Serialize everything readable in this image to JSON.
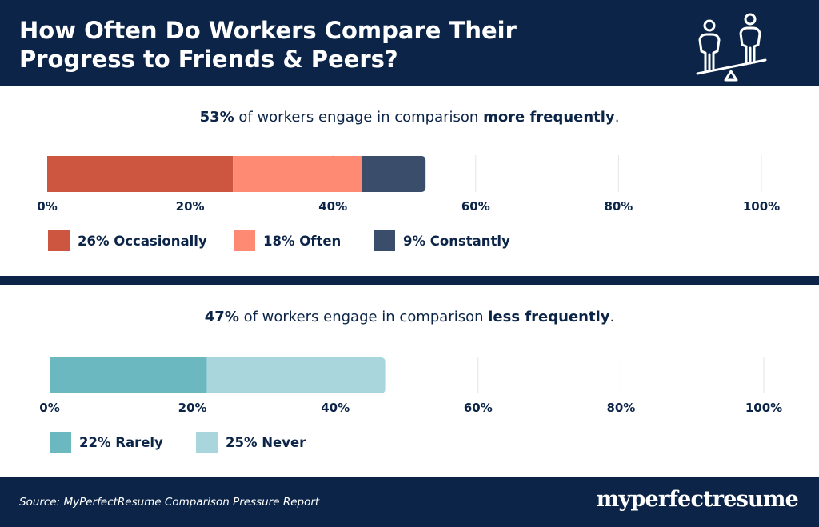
{
  "header": {
    "title": "How Often Do Workers Compare Their Progress to Friends & Peers?",
    "icon": "seesaw-people-icon"
  },
  "chart_data": [
    {
      "type": "bar",
      "stacked": true,
      "orientation": "horizontal",
      "headline": {
        "bold_pre": "53%",
        "text": " of workers engage in comparison ",
        "bold_post": "more frequently",
        "end": "."
      },
      "xlim": [
        0,
        100
      ],
      "tick_labels": [
        "0%",
        "20%",
        "40%",
        "60%",
        "80%",
        "100%"
      ],
      "grid": true,
      "legend_position": "bottom-left",
      "series": [
        {
          "name": "Occasionally",
          "value": 26,
          "label": "26% Occasionally",
          "color": "#cd5640"
        },
        {
          "name": "Often",
          "value": 18,
          "label": "18% Often",
          "color": "#ff8a74"
        },
        {
          "name": "Constantly",
          "value": 9,
          "label": "9% Constantly",
          "color": "#3a4d6b"
        }
      ]
    },
    {
      "type": "bar",
      "stacked": true,
      "orientation": "horizontal",
      "headline": {
        "bold_pre": "47%",
        "text": " of workers engage in comparison ",
        "bold_post": "less frequently",
        "end": "."
      },
      "xlim": [
        0,
        100
      ],
      "tick_labels": [
        "0%",
        "20%",
        "40%",
        "60%",
        "80%",
        "100%"
      ],
      "grid": true,
      "legend_position": "bottom-left",
      "series": [
        {
          "name": "Rarely",
          "value": 22,
          "label": "22% Rarely",
          "color": "#6bb8c1"
        },
        {
          "name": "Never",
          "value": 25,
          "label": "25% Never",
          "color": "#a9d6dc"
        }
      ]
    }
  ],
  "footer": {
    "source": "Source: MyPerfectResume Comparison Pressure Report",
    "logo": "myperfectresume"
  }
}
